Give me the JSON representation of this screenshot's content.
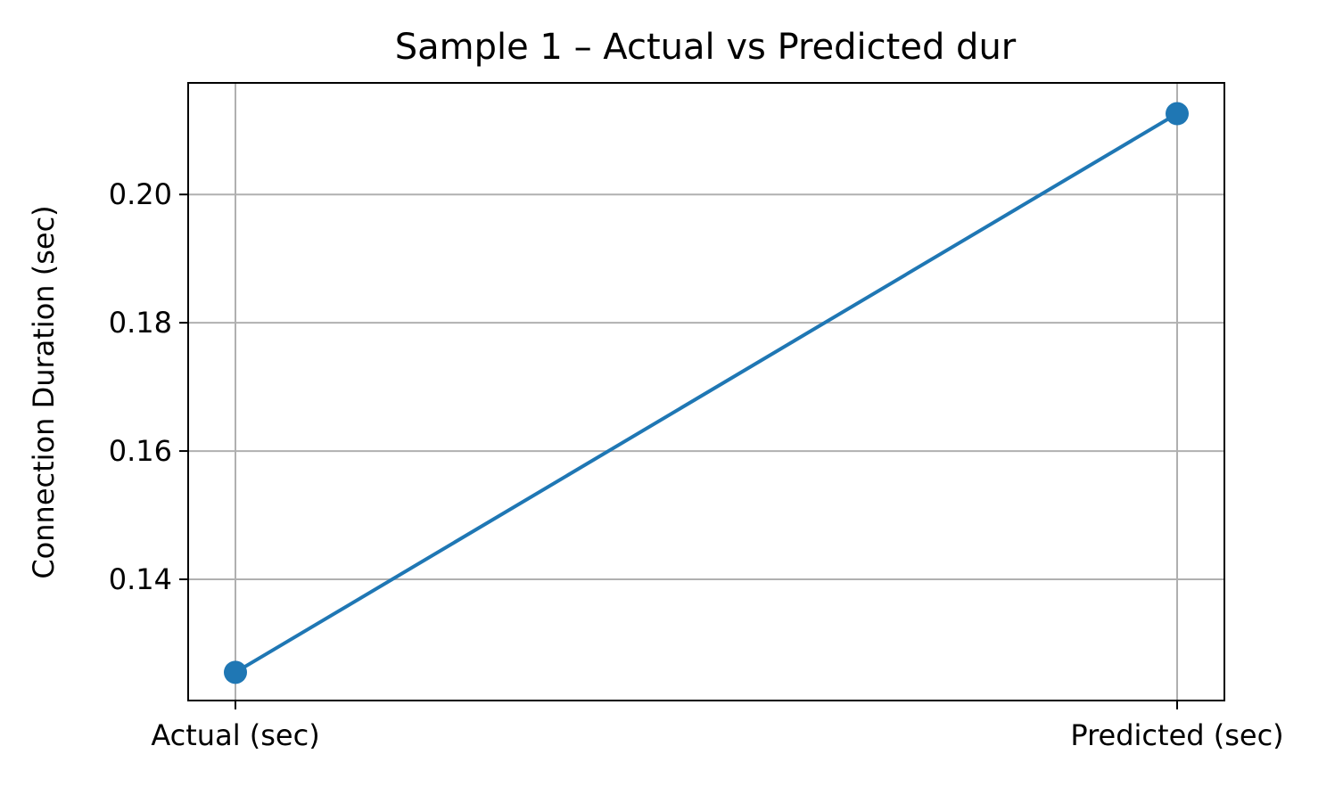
{
  "chart_data": {
    "type": "line",
    "title": "Sample 1 – Actual vs Predicted dur",
    "xlabel": "",
    "ylabel": "Connection Duration (sec)",
    "categories": [
      "Actual (sec)",
      "Predicted (sec)"
    ],
    "series": [
      {
        "values": [
          0.1255,
          0.2126
        ]
      }
    ],
    "ylim": [
      0.1211,
      0.2174
    ],
    "yticks": [
      0.14,
      0.16,
      0.18,
      0.2
    ],
    "ytick_labels": [
      "0.14",
      "0.16",
      "0.18",
      "0.20"
    ],
    "grid": true,
    "line_color": "#1f77b4",
    "grid_color": "#b0b0b0"
  }
}
